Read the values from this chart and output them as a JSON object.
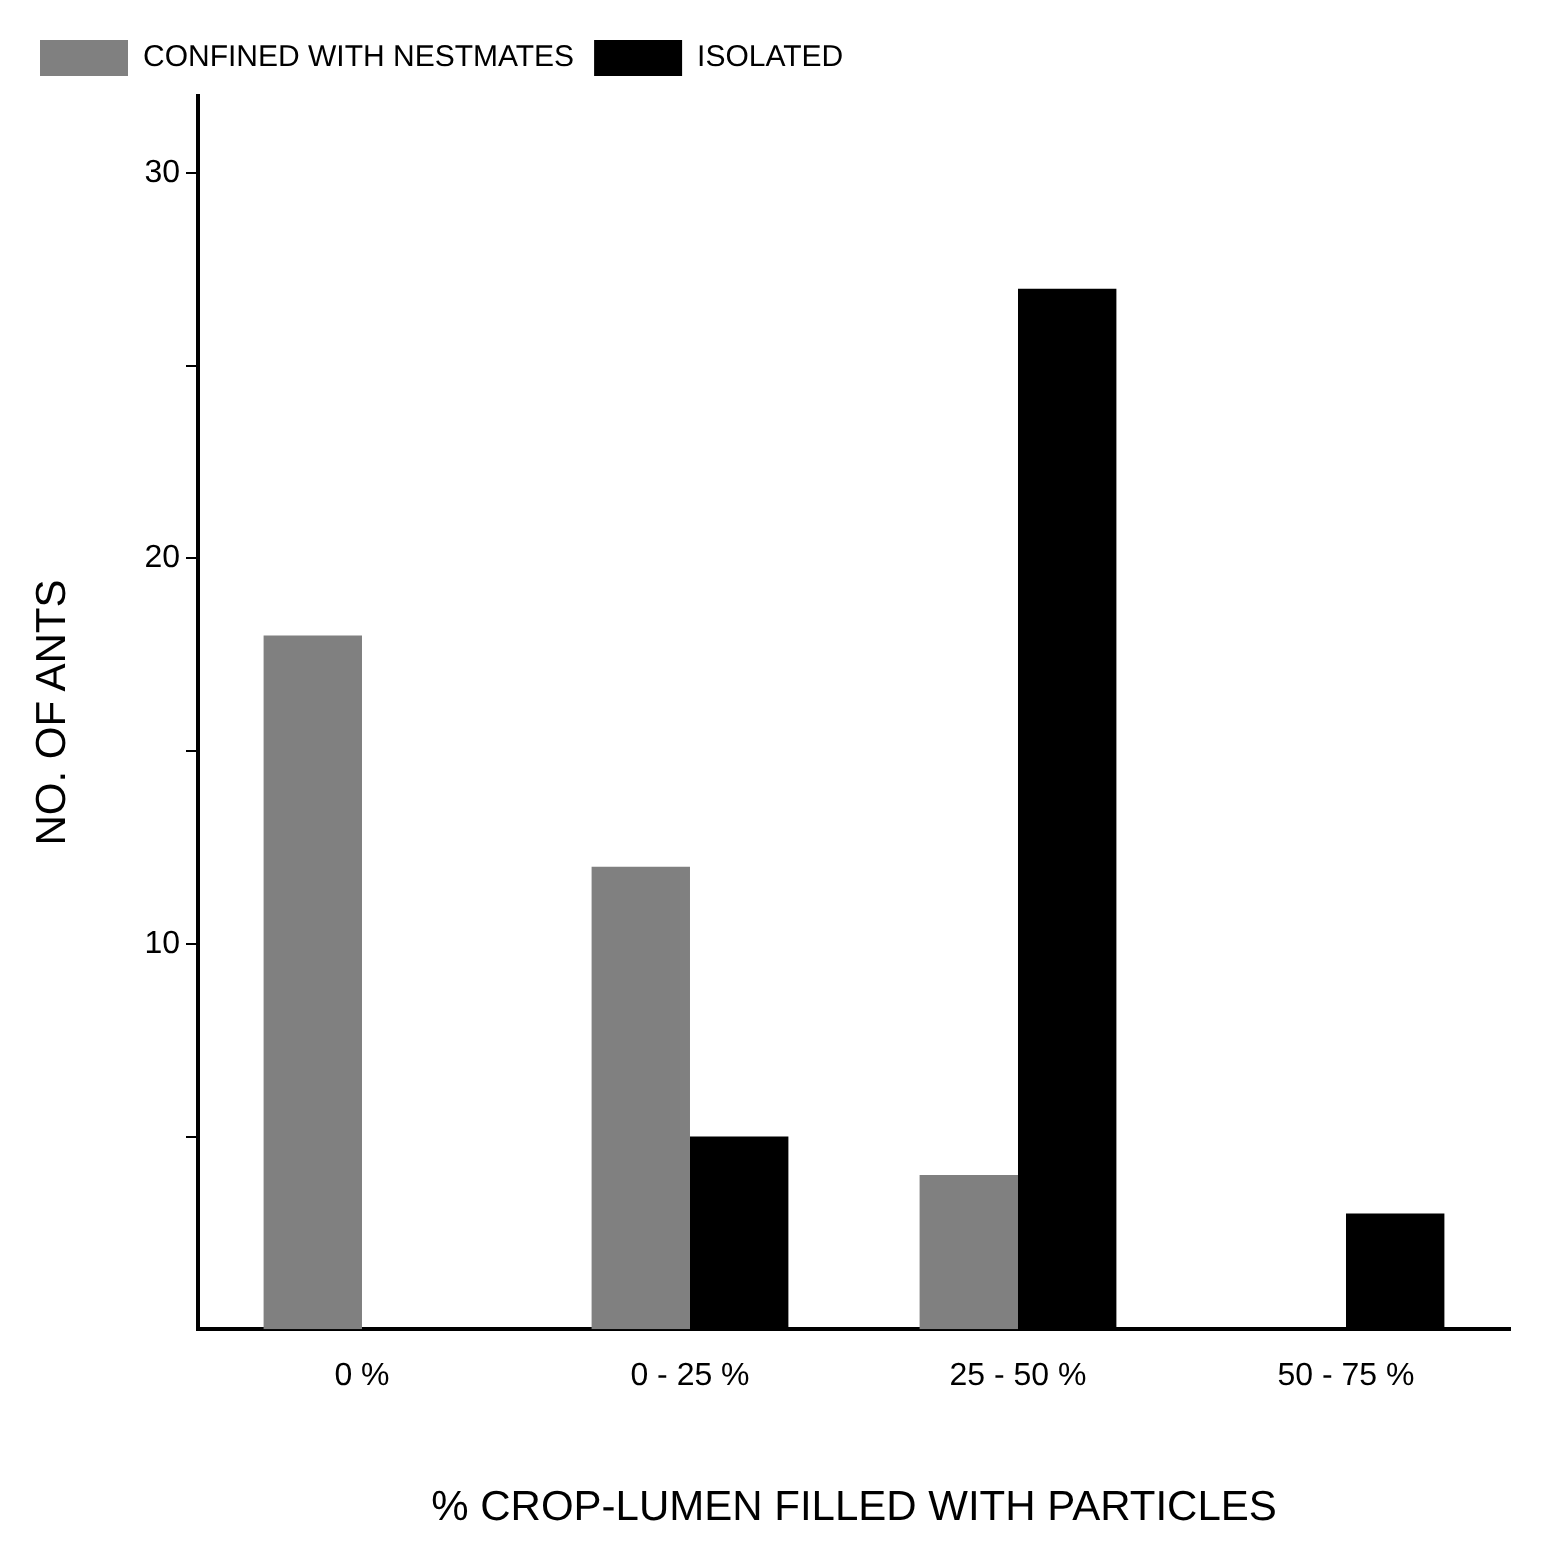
{
  "chart_data": {
    "type": "bar",
    "xlabel": "% CROP-LUMEN FILLED WITH PARTICLES",
    "ylabel": "NO. OF ANTS",
    "categories": [
      "0 %",
      "0 - 25 %",
      "25 - 50 %",
      "50 - 75 %"
    ],
    "series": [
      {
        "name": "CONFINED WITH NESTMATES",
        "color": "#808080",
        "values": [
          18,
          12,
          4,
          0
        ]
      },
      {
        "name": "ISOLATED",
        "color": "#000000",
        "values": [
          0,
          5,
          27,
          3
        ]
      }
    ],
    "ylim": [
      0,
      32
    ],
    "yticks": [
      {
        "value": 5,
        "label": null
      },
      10,
      {
        "value": 15,
        "label": null
      },
      20,
      {
        "value": 25,
        "label": null
      },
      30
    ],
    "grid": false,
    "legend": "top left"
  }
}
